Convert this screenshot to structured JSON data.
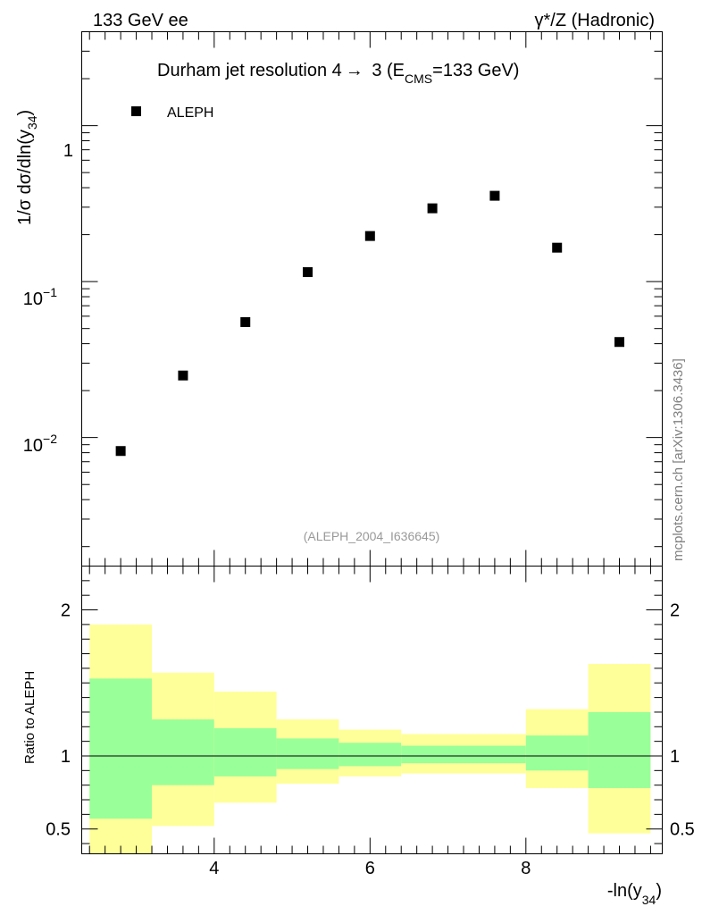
{
  "header": {
    "left": "133 GeV ee",
    "right": "γ*/Z (Hadronic)"
  },
  "watermark": "mcplots.cern.ch [arXiv:1306.3436]",
  "chart_data": [
    {
      "type": "scatter",
      "title_main": "Durham jet resolution 4",
      "title_arrow": "→",
      "title_num": " 3 (E",
      "title_sub": "CMS",
      "title_tail": "=133 GeV)",
      "ylabel_main": "1/σ  dσ/dln(y",
      "ylabel_sub": "34",
      "ylabel_tail": ")",
      "yscale": "log",
      "ylim": [
        0.0015,
        4.0
      ],
      "xlim": [
        2.3,
        9.75
      ],
      "ytick_labels": {
        "base": "10",
        "minus1": "−1",
        "minus2": "−2",
        "one": "1"
      },
      "legend": {
        "label": "ALEPH",
        "position": "top-left"
      },
      "analysis_label": "(ALEPH_2004_I636645)",
      "series": [
        {
          "name": "ALEPH",
          "x": [
            2.8,
            3.6,
            4.4,
            5.2,
            6.0,
            6.8,
            7.6,
            8.4,
            9.2
          ],
          "y": [
            0.0082,
            0.025,
            0.055,
            0.115,
            0.196,
            0.295,
            0.355,
            0.165,
            0.041
          ]
        }
      ]
    },
    {
      "type": "area",
      "ylabel": "Ratio to ALEPH",
      "xlabel_main": "-ln(y",
      "xlabel_sub": "34",
      "xlabel_tail": ")",
      "xlim": [
        2.3,
        9.75
      ],
      "ylim": [
        0.33,
        2.3
      ],
      "xtick_labels": [
        "4",
        "6",
        "8"
      ],
      "xticks": [
        4,
        6,
        8
      ],
      "ytick_labels": [
        "0.5",
        "1",
        "2"
      ],
      "yticks": [
        0.5,
        1,
        2
      ],
      "reference_line": 1,
      "bins": [
        {
          "lo": 2.4,
          "hi": 3.2,
          "green": [
            0.57,
            1.53
          ],
          "yellow": [
            0.33,
            1.9
          ]
        },
        {
          "lo": 3.2,
          "hi": 4.0,
          "green": [
            0.8,
            1.25
          ],
          "yellow": [
            0.52,
            1.57
          ]
        },
        {
          "lo": 4.0,
          "hi": 4.8,
          "green": [
            0.86,
            1.19
          ],
          "yellow": [
            0.68,
            1.44
          ]
        },
        {
          "lo": 4.8,
          "hi": 5.6,
          "green": [
            0.91,
            1.12
          ],
          "yellow": [
            0.81,
            1.25
          ]
        },
        {
          "lo": 5.6,
          "hi": 6.4,
          "green": [
            0.93,
            1.09
          ],
          "yellow": [
            0.86,
            1.18
          ]
        },
        {
          "lo": 6.4,
          "hi": 7.2,
          "green": [
            0.95,
            1.07
          ],
          "yellow": [
            0.88,
            1.15
          ]
        },
        {
          "lo": 7.2,
          "hi": 8.0,
          "green": [
            0.95,
            1.07
          ],
          "yellow": [
            0.88,
            1.15
          ]
        },
        {
          "lo": 8.0,
          "hi": 8.8,
          "green": [
            0.9,
            1.14
          ],
          "yellow": [
            0.78,
            1.32
          ]
        },
        {
          "lo": 8.8,
          "hi": 9.6,
          "green": [
            0.78,
            1.3
          ],
          "yellow": [
            0.47,
            1.63
          ]
        }
      ]
    }
  ],
  "colors": {
    "green": "#99ff99",
    "yellow": "#ffff99",
    "marker": "#000000"
  }
}
